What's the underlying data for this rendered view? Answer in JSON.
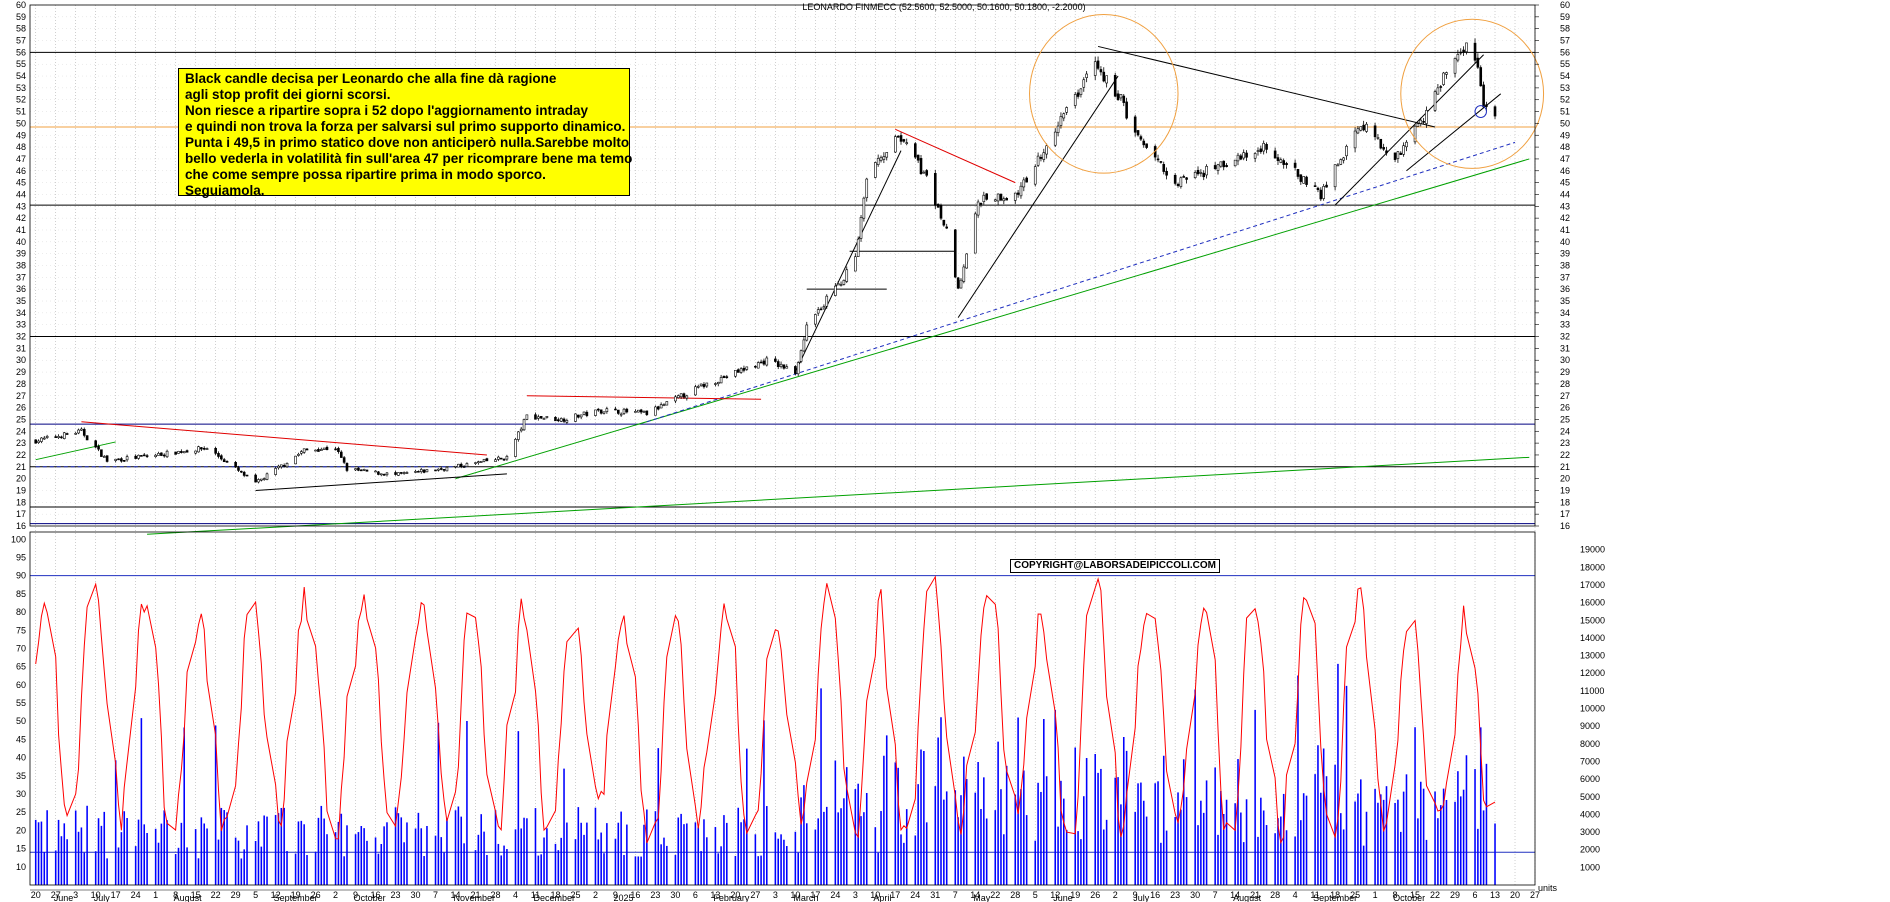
{
  "chart_data": [
    {
      "type": "candlestick",
      "title": "LEONARDO FINMECC (52.5600, 52.5000, 50.1600, 50.1800, -2.2000)",
      "y_axis_ticks": [
        16,
        17,
        18,
        19,
        20,
        21,
        22,
        23,
        24,
        25,
        26,
        27,
        28,
        29,
        30,
        31,
        32,
        33,
        34,
        35,
        36,
        37,
        38,
        39,
        40,
        41,
        42,
        43,
        44,
        45,
        46,
        47,
        48,
        49,
        50,
        51,
        52,
        53,
        54,
        55,
        56,
        57,
        58,
        59,
        60
      ],
      "ylim": [
        16,
        60
      ],
      "x_day_ticks": [
        "20",
        "27",
        "3",
        "10",
        "17",
        "24",
        "1",
        "8",
        "15",
        "22",
        "29",
        "5",
        "12",
        "19",
        "26",
        "2",
        "9",
        "16",
        "23",
        "30",
        "7",
        "14",
        "21",
        "28",
        "4",
        "11",
        "18",
        "25",
        "2",
        "9",
        "16",
        "23",
        "30",
        "6",
        "13",
        "20",
        "27",
        "3",
        "10",
        "17",
        "24",
        "3",
        "10",
        "17",
        "24",
        "31",
        "7",
        "14",
        "22",
        "28",
        "5",
        "12",
        "19",
        "26",
        "2",
        "9",
        "16",
        "23",
        "30",
        "7",
        "14",
        "21",
        "28",
        "4",
        "11",
        "18",
        "25",
        "1",
        "8",
        "15",
        "22",
        "29",
        "6",
        "13",
        "20",
        "27"
      ],
      "x_month_labels": [
        "June",
        "July",
        "August",
        "September",
        "October",
        "November",
        "December",
        "2025",
        "February",
        "March",
        "April",
        "May",
        "June",
        "July",
        "August",
        "September",
        "October"
      ],
      "close_anchors": [
        {
          "date": "2024-05-20",
          "price": 23.2
        },
        {
          "date": "2024-06-05",
          "price": 24.0
        },
        {
          "date": "2024-06-14",
          "price": 21.5
        },
        {
          "date": "2024-07-01",
          "price": 22.0
        },
        {
          "date": "2024-07-19",
          "price": 22.6
        },
        {
          "date": "2024-08-05",
          "price": 19.6
        },
        {
          "date": "2024-08-22",
          "price": 22.4
        },
        {
          "date": "2024-09-02",
          "price": 22.6
        },
        {
          "date": "2024-09-06",
          "price": 20.8
        },
        {
          "date": "2024-09-23",
          "price": 20.3
        },
        {
          "date": "2024-10-14",
          "price": 21.0
        },
        {
          "date": "2024-11-01",
          "price": 21.8
        },
        {
          "date": "2024-11-08",
          "price": 25.3
        },
        {
          "date": "2024-11-20",
          "price": 25.0
        },
        {
          "date": "2024-12-05",
          "price": 25.8
        },
        {
          "date": "2024-12-20",
          "price": 25.5
        },
        {
          "date": "2025-01-08",
          "price": 27.8
        },
        {
          "date": "2025-01-31",
          "price": 30.0
        },
        {
          "date": "2025-02-10",
          "price": 29.0
        },
        {
          "date": "2025-02-14",
          "price": 33.0
        },
        {
          "date": "2025-02-24",
          "price": 36.0
        },
        {
          "date": "2025-03-03",
          "price": 38.5
        },
        {
          "date": "2025-03-07",
          "price": 45.2
        },
        {
          "date": "2025-03-18",
          "price": 49.3
        },
        {
          "date": "2025-03-28",
          "price": 45.3
        },
        {
          "date": "2025-04-04",
          "price": 41.0
        },
        {
          "date": "2025-04-08",
          "price": 36.0
        },
        {
          "date": "2025-04-15",
          "price": 43.5
        },
        {
          "date": "2025-04-29",
          "price": 44.0
        },
        {
          "date": "2025-05-12",
          "price": 49.5
        },
        {
          "date": "2025-05-26",
          "price": 55.0
        },
        {
          "date": "2025-06-04",
          "price": 52.0
        },
        {
          "date": "2025-06-09",
          "price": 49.0
        },
        {
          "date": "2025-06-23",
          "price": 45.0
        },
        {
          "date": "2025-07-10",
          "price": 46.5
        },
        {
          "date": "2025-07-25",
          "price": 48.0
        },
        {
          "date": "2025-08-13",
          "price": 44.0
        },
        {
          "date": "2025-08-27",
          "price": 50.0
        },
        {
          "date": "2025-09-08",
          "price": 47.0
        },
        {
          "date": "2025-09-18",
          "price": 50.5
        },
        {
          "date": "2025-09-26",
          "price": 54.5
        },
        {
          "date": "2025-10-03",
          "price": 56.3
        },
        {
          "date": "2025-10-06",
          "price": 55.8
        },
        {
          "date": "2025-10-09",
          "price": 51.5
        },
        {
          "date": "2025-10-13",
          "price": 50.18
        }
      ],
      "horizontal_lines": [
        {
          "price": 56.0,
          "color": "#000000"
        },
        {
          "price": 49.7,
          "color": "#f0a040"
        },
        {
          "price": 43.1,
          "color": "#000000"
        },
        {
          "price": 32.0,
          "color": "#000000"
        },
        {
          "price": 24.6,
          "color": "#000080"
        },
        {
          "price": 21.0,
          "color": "#000000"
        },
        {
          "price": 17.6,
          "color": "#000000"
        },
        {
          "price": 16.2,
          "color": "#000080"
        },
        {
          "price": 39.2,
          "color": "#000000",
          "from": "2025-03-01",
          "to": "2025-04-07"
        },
        {
          "price": 36.0,
          "color": "#000000",
          "from": "2025-02-14",
          "to": "2025-03-14"
        }
      ],
      "trend_lines": [
        {
          "color": "#00a000",
          "from": {
            "date": "2024-05-20",
            "price": 21.6
          },
          "to": {
            "date": "2024-06-17",
            "price": 23.1
          }
        },
        {
          "color": "#00a000",
          "from": {
            "date": "2024-10-14",
            "price": 20.0
          },
          "to": {
            "date": "2025-10-25",
            "price": 47.0
          }
        },
        {
          "color": "#00a000",
          "from": {
            "date": "2024-06-28",
            "price": 15.3
          },
          "to": {
            "date": "2025-10-25",
            "price": 21.8
          }
        },
        {
          "color": "#2030c0",
          "dash": true,
          "from": {
            "date": "2024-05-20",
            "price": 21.0
          },
          "to": {
            "date": "2024-10-18",
            "price": 21.0
          }
        },
        {
          "color": "#2030c0",
          "dash": true,
          "from": {
            "date": "2024-12-20",
            "price": 24.8
          },
          "to": {
            "date": "2025-10-20",
            "price": 48.4
          }
        },
        {
          "color": "#e00000",
          "from": {
            "date": "2024-06-05",
            "price": 24.8
          },
          "to": {
            "date": "2024-10-25",
            "price": 22.0
          }
        },
        {
          "color": "#e00000",
          "from": {
            "date": "2024-11-08",
            "price": 27.0
          },
          "to": {
            "date": "2025-01-29",
            "price": 26.7
          }
        },
        {
          "color": "#e00000",
          "from": {
            "date": "2025-03-17",
            "price": 49.5
          },
          "to": {
            "date": "2025-04-28",
            "price": 45.0
          }
        },
        {
          "color": "#000000",
          "from": {
            "date": "2024-08-05",
            "price": 19.0
          },
          "to": {
            "date": "2024-11-01",
            "price": 20.4
          }
        },
        {
          "color": "#000000",
          "from": {
            "date": "2025-02-10",
            "price": 29.0
          },
          "to": {
            "date": "2025-03-19",
            "price": 47.7
          }
        },
        {
          "color": "#000000",
          "from": {
            "date": "2025-04-08",
            "price": 33.6
          },
          "to": {
            "date": "2025-06-03",
            "price": 54.0
          }
        },
        {
          "color": "#000000",
          "from": {
            "date": "2025-05-27",
            "price": 56.5
          },
          "to": {
            "date": "2025-09-22",
            "price": 49.7
          }
        },
        {
          "color": "#000000",
          "from": {
            "date": "2025-08-18",
            "price": 43.1
          },
          "to": {
            "date": "2025-10-09",
            "price": 55.8
          }
        },
        {
          "color": "#000000",
          "from": {
            "date": "2025-09-12",
            "price": 46.0
          },
          "to": {
            "date": "2025-10-15",
            "price": 52.5
          }
        }
      ],
      "circles": [
        {
          "center": {
            "date": "2025-05-29",
            "price": 52.5
          },
          "rx_days": 26,
          "ry_price": 6.7,
          "color": "#f0a040"
        },
        {
          "center": {
            "date": "2025-10-05",
            "price": 52.5
          },
          "rx_days": 25,
          "ry_price": 6.3,
          "color": "#f0a040"
        },
        {
          "center": {
            "date": "2025-10-08",
            "price": 51.0
          },
          "rx_days": 2,
          "ry_price": 0.5,
          "color": "#2030c0"
        }
      ]
    },
    {
      "type": "line",
      "series": [
        {
          "color": "#ff0000"
        }
      ],
      "y_axis_ticks": [
        10,
        15,
        20,
        25,
        30,
        35,
        40,
        45,
        50,
        55,
        60,
        65,
        70,
        75,
        80,
        85,
        90,
        95,
        100
      ],
      "ylim": [
        5,
        102
      ],
      "horizontal_lines": [
        {
          "value": 90,
          "color": "#2030c0"
        },
        {
          "value": 14,
          "color": "#2030c0"
        }
      ]
    },
    {
      "type": "bar",
      "series": [
        {
          "color": "#0000ff"
        }
      ],
      "y_axis_ticks": [
        1000,
        2000,
        3000,
        4000,
        5000,
        6000,
        7000,
        8000,
        9000,
        10000,
        11000,
        12000,
        13000,
        14000,
        15000,
        16000,
        17000,
        18000,
        19000
      ],
      "ylim": [
        0,
        20000
      ],
      "unit_label": "units"
    }
  ],
  "annotation": {
    "lines": [
      "Black candle decisa per Leonardo che alla fine dà ragione",
      "agli stop profit dei giorni scorsi.",
      "Non riesce a ripartire sopra i 52 dopo l'aggiornamento intraday",
      "e quindi non trova la forza per salvarsi sul primo supporto dinamico.",
      "Punta i 49,5 in primo statico dove non anticiperò nulla.Sarebbe molto",
      "bello vederla in volatilità fin sull'area 47 per ricomprare bene ma temo",
      "che come sempre possa ripartire prima in modo sporco.",
      "Seguiamola."
    ],
    "background": "#ffff00"
  },
  "copyright": "COPYRIGHT@LABORSADEIPICCOLI.COM",
  "colors": {
    "grid": "#b0b0b0",
    "candle": "#000000",
    "oscillator": "#ff0000",
    "volume": "#0000ff",
    "orange": "#f0a040"
  }
}
